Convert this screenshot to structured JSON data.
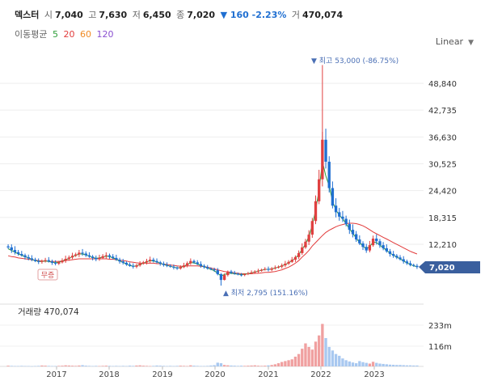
{
  "header": {
    "name": "덱스터",
    "open_label": "시",
    "open": "7,040",
    "high_label": "고",
    "high": "7,630",
    "low_label": "저",
    "low": "6,450",
    "close_label": "종",
    "close": "7,020",
    "change": "▼ 160 -2.23%",
    "volume_label": "거",
    "volume": "470,074"
  },
  "ma": {
    "label": "이동평균",
    "periods": [
      {
        "text": "5",
        "color": "#2e9e3a"
      },
      {
        "text": "20",
        "color": "#e23b3b"
      },
      {
        "text": "60",
        "color": "#f08a24"
      },
      {
        "text": "120",
        "color": "#8a4fd1"
      }
    ]
  },
  "scale_label": "Linear",
  "annotations": {
    "high": "▼ 최고 53,000 (-86.75%)",
    "low": "▲ 최저 2,795 (151.16%)",
    "event": "무증",
    "current": "7,020"
  },
  "volume_panel": {
    "title": "거래량 470,074"
  },
  "colors": {
    "up": "#e04040",
    "down": "#1f6fd1",
    "ma5": "#2e9e3a",
    "ma20": "#e23b3b",
    "ma60": "#f08a24",
    "current_tag": "#3a5f9e"
  },
  "chart_data": [
    {
      "type": "candlestick",
      "interval": "weekly",
      "x": [
        "2017",
        "2018",
        "2019",
        "2020",
        "2021",
        "2022",
        "2023"
      ],
      "y_ticks": [
        48840,
        42735,
        36630,
        30525,
        24420,
        18315,
        12210
      ],
      "close_series": [
        11500,
        10900,
        10400,
        10000,
        9700,
        9300,
        9000,
        8700,
        8400,
        8200,
        8400,
        8600,
        8300,
        8000,
        7800,
        8100,
        8500,
        8900,
        9200,
        9600,
        9900,
        10300,
        10100,
        9700,
        9400,
        9100,
        8800,
        9100,
        9500,
        9700,
        9400,
        9100,
        8700,
        8300,
        8000,
        7600,
        7300,
        7100,
        7400,
        7800,
        8100,
        8400,
        8700,
        8400,
        8100,
        7800,
        7500,
        7300,
        7100,
        6900,
        6700,
        7000,
        7400,
        7900,
        8400,
        8100,
        7700,
        7300,
        7000,
        6700,
        6500,
        6300,
        5400,
        4100,
        5200,
        6000,
        5700,
        5500,
        5300,
        5200,
        5400,
        5600,
        5800,
        6000,
        6200,
        6400,
        6600,
        6400,
        6700,
        6900,
        7100,
        7400,
        7800,
        8200,
        8700,
        9300,
        10200,
        11500,
        12800,
        14400,
        17500,
        22000,
        27000,
        36000,
        31000,
        25000,
        21000,
        19500,
        18500,
        18000,
        16800,
        15500,
        14500,
        13300,
        12400,
        11600,
        10800,
        12000,
        13500,
        12900,
        12000,
        11300,
        10600,
        10000,
        9600,
        9200,
        8800,
        8300,
        7900,
        7500,
        7300,
        7020
      ],
      "ma_short": [
        11200,
        10800,
        10400,
        10000,
        9700,
        9400,
        9100,
        8800,
        8500,
        8300,
        8300,
        8400,
        8300,
        8100,
        8000,
        8100,
        8400,
        8700,
        9000,
        9400,
        9700,
        10000,
        10000,
        9800,
        9500,
        9200,
        9000,
        9100,
        9300,
        9500,
        9400,
        9100,
        8800,
        8400,
        8100,
        7700,
        7400,
        7200,
        7300,
        7600,
        7900,
        8200,
        8500,
        8400,
        8200,
        7900,
        7600,
        7400,
        7200,
        7000,
        6800,
        6900,
        7200,
        7600,
        8000,
        8000,
        7700,
        7400,
        7100,
        6800,
        6500,
        6200,
        5600,
        5000,
        5300,
        5600,
        5600,
        5500,
        5400,
        5300,
        5400,
        5500,
        5700,
        5900,
        6100,
        6300,
        6500,
        6500,
        6600,
        6800,
        7000,
        7300,
        7600,
        8000,
        8500,
        9000,
        9900,
        11000,
        12300,
        14000,
        16500,
        20000,
        24500,
        31000,
        27800,
        25500,
        22000,
        20000,
        18800,
        18000,
        16900,
        15700,
        14700,
        13600,
        12600,
        11800,
        11100,
        11700,
        12700,
        12600,
        12000,
        11400,
        10800,
        10200,
        9700,
        9300,
        8900,
        8400,
        8000,
        7600,
        7300,
        7100
      ],
      "ma_long": [
        9600,
        9400,
        9300,
        9100,
        9000,
        8900,
        8800,
        8700,
        8600,
        8500,
        8400,
        8400,
        8300,
        8300,
        8300,
        8300,
        8400,
        8500,
        8600,
        8700,
        8800,
        8900,
        8900,
        8900,
        8900,
        8900,
        8900,
        8900,
        8900,
        8900,
        8800,
        8800,
        8700,
        8600,
        8500,
        8400,
        8200,
        8100,
        8000,
        7900,
        7900,
        7900,
        7900,
        7900,
        7800,
        7800,
        7700,
        7600,
        7500,
        7400,
        7300,
        7200,
        7200,
        7300,
        7300,
        7300,
        7300,
        7200,
        7100,
        7000,
        6800,
        6600,
        6400,
        6200,
        6000,
        5900,
        5800,
        5700,
        5600,
        5500,
        5500,
        5500,
        5500,
        5600,
        5600,
        5700,
        5800,
        5800,
        5900,
        6000,
        6200,
        6400,
        6700,
        7000,
        7400,
        7900,
        8500,
        9300,
        10000,
        10800,
        11800,
        12600,
        13400,
        14200,
        14900,
        15400,
        15800,
        16200,
        16500,
        16700,
        16900,
        17000,
        17000,
        16900,
        16700,
        16400,
        16000,
        15500,
        15000,
        14600,
        14200,
        13800,
        13400,
        13000,
        12600,
        12200,
        11800,
        11400,
        11000,
        10600,
        10300,
        10000
      ],
      "volume_series_m": [
        4,
        3,
        2,
        2,
        3,
        2,
        2,
        1,
        2,
        3,
        5,
        4,
        3,
        2,
        2,
        3,
        4,
        6,
        5,
        4,
        3,
        5,
        7,
        4,
        3,
        2,
        3,
        2,
        3,
        4,
        3,
        2,
        3,
        2,
        3,
        2,
        4,
        3,
        5,
        6,
        4,
        3,
        2,
        3,
        5,
        4,
        3,
        2,
        3,
        2,
        3,
        4,
        3,
        2,
        6,
        4,
        3,
        2,
        2,
        3,
        5,
        7,
        21,
        18,
        8,
        6,
        5,
        4,
        3,
        4,
        3,
        4,
        5,
        6,
        4,
        3,
        4,
        6,
        8,
        12,
        18,
        25,
        30,
        35,
        40,
        55,
        70,
        100,
        130,
        110,
        95,
        140,
        175,
        240,
        160,
        110,
        90,
        70,
        60,
        45,
        35,
        28,
        22,
        18,
        30,
        24,
        20,
        16,
        26,
        20,
        16,
        14,
        12,
        10,
        9,
        8,
        8,
        7,
        6,
        6,
        5,
        5
      ],
      "vol_ticks": [
        "233m",
        "116m"
      ],
      "high_mark": 53000,
      "low_mark": 2795,
      "current": 7020
    }
  ]
}
